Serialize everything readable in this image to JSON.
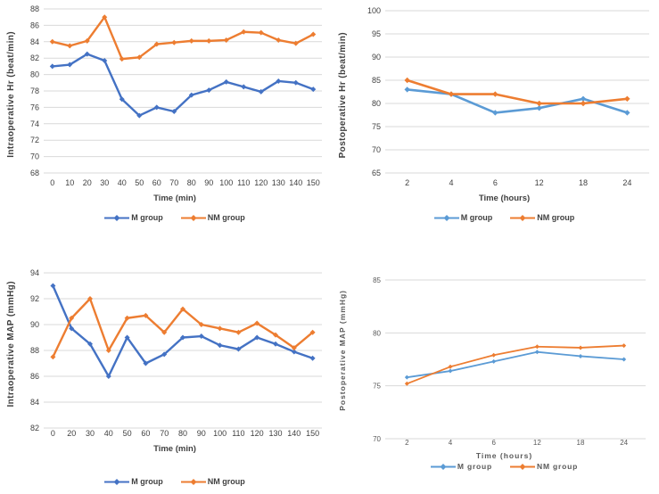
{
  "figure": {
    "background": "#FFFFFF",
    "layout": "2x2 line charts"
  },
  "colors": {
    "m_group_dark_blue": "#4472C4",
    "m_group_light_blue": "#5B9BD5",
    "nm_group_orange": "#ED7D31",
    "gridline": "#D9D9D9",
    "tick_text": "#404040",
    "tick_text_light": "#595959"
  },
  "chart_data": [
    {
      "type": "line",
      "position": "top-left",
      "title": "",
      "ylabel": "Intraoperative Hr (beat/min)",
      "xlabel": "Time (min)",
      "categories": [
        "0",
        "10",
        "20",
        "30",
        "40",
        "50",
        "60",
        "70",
        "80",
        "90",
        "100",
        "110",
        "120",
        "130",
        "140",
        "150"
      ],
      "series": [
        {
          "name": "M group",
          "color": "#4472C4",
          "marker": "diamond",
          "values": [
            81,
            81.2,
            82.5,
            81.7,
            77,
            75,
            76,
            75.5,
            77.5,
            78.1,
            79.1,
            78.5,
            77.9,
            79.2,
            79,
            78.2
          ]
        },
        {
          "name": "NM group",
          "color": "#ED7D31",
          "marker": "diamond",
          "values": [
            84,
            83.5,
            84.1,
            87,
            81.9,
            82.1,
            83.7,
            83.9,
            84.1,
            84.1,
            84.2,
            85.2,
            85.1,
            84.2,
            83.8,
            84.9
          ]
        }
      ],
      "ylim": [
        68,
        88
      ],
      "ystep": 2,
      "grid": true,
      "legend_position": "bottom"
    },
    {
      "type": "line",
      "position": "top-right",
      "title": "",
      "ylabel": "Postoperative Hr (beat/min)",
      "xlabel": "Time (hours)",
      "categories": [
        "2",
        "4",
        "6",
        "12",
        "18",
        "24"
      ],
      "series": [
        {
          "name": "M group",
          "color": "#5B9BD5",
          "marker": "diamond",
          "values": [
            83,
            82,
            78,
            79,
            81,
            78
          ]
        },
        {
          "name": "NM group",
          "color": "#ED7D31",
          "marker": "diamond",
          "values": [
            85,
            82,
            82,
            80,
            80,
            81
          ]
        }
      ],
      "ylim": [
        65,
        100
      ],
      "ystep": 5,
      "grid": true,
      "legend_position": "bottom"
    },
    {
      "type": "line",
      "position": "bottom-left",
      "title": "",
      "ylabel": "Intraoperative MAP (mmHg)",
      "xlabel": "Time (min)",
      "categories": [
        "0",
        "20",
        "30",
        "40",
        "50",
        "60",
        "70",
        "80",
        "90",
        "100",
        "110",
        "120",
        "130",
        "140",
        "150"
      ],
      "series": [
        {
          "name": "M group",
          "color": "#4472C4",
          "marker": "diamond",
          "values": [
            93,
            89.7,
            88.5,
            86,
            89,
            87,
            87.7,
            89,
            89.1,
            88.4,
            88.1,
            89,
            88.5,
            87.9,
            87.4
          ]
        },
        {
          "name": "NM group",
          "color": "#ED7D31",
          "marker": "diamond",
          "values": [
            87.5,
            90.5,
            92,
            88,
            90.5,
            90.7,
            89.4,
            91.2,
            90,
            89.7,
            89.4,
            90.1,
            89.2,
            88.2,
            89.4
          ]
        }
      ],
      "ylim": [
        82,
        94
      ],
      "ystep": 2,
      "grid": true,
      "legend_position": "bottom"
    },
    {
      "type": "line",
      "position": "bottom-right",
      "title": "",
      "ylabel": "Postoperative MAP (mmHg)",
      "xlabel": "Time (hours)",
      "categories": [
        "2",
        "4",
        "6",
        "12",
        "18",
        "24"
      ],
      "series": [
        {
          "name": "M group",
          "color": "#5B9BD5",
          "marker": "diamond",
          "values": [
            75.8,
            76.4,
            77.3,
            78.2,
            77.8,
            77.5
          ]
        },
        {
          "name": "NM group",
          "color": "#ED7D31",
          "marker": "diamond",
          "values": [
            75.2,
            76.8,
            77.9,
            78.7,
            78.6,
            78.8
          ]
        }
      ],
      "ylim": [
        70,
        85
      ],
      "ystep": 5,
      "grid": true,
      "legend_position": "bottom"
    }
  ]
}
